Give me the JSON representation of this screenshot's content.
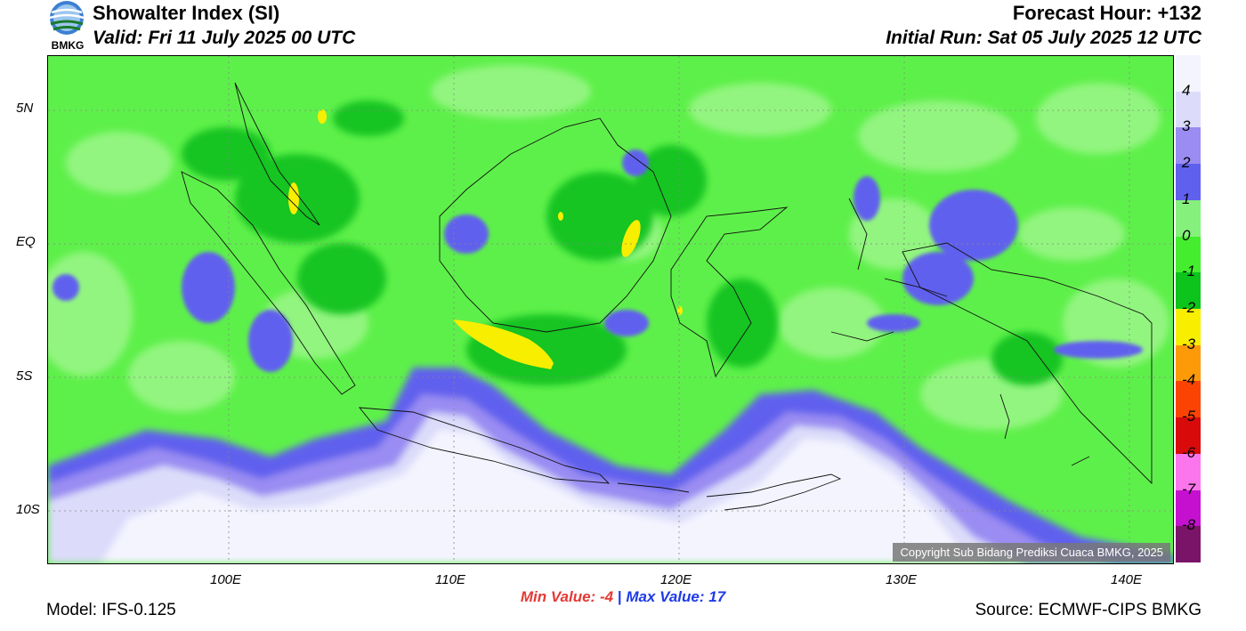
{
  "header": {
    "title": "Showalter Index (SI)",
    "valid": "Valid: Fri 11 July 2025 00 UTC",
    "forecast_hour": "Forecast Hour: +132",
    "initial_run": "Initial Run: Sat 05 July 2025 12 UTC"
  },
  "logo": {
    "text": "BMKG",
    "icon": "bmkg-logo-icon"
  },
  "map": {
    "lat_labels": [
      "5N",
      "EQ",
      "5S",
      "10S"
    ],
    "lon_labels": [
      "100E",
      "110E",
      "120E",
      "130E",
      "140E"
    ],
    "copyright": "Copyright Sub Bidang Prediksi Cuaca BMKG, 2025"
  },
  "colorbar": {
    "labels": [
      "4",
      "3",
      "2",
      "1",
      "0",
      "-1",
      "-2",
      "-3",
      "-4",
      "-5",
      "-6",
      "-7",
      "-8"
    ],
    "colors": [
      "#f4f4ff",
      "#dcdcfa",
      "#9a8cf2",
      "#6060ee",
      "#86f07c",
      "#44ee2e",
      "#0cc41c",
      "#f8ee00",
      "#fd9a08",
      "#fb4404",
      "#d80a0a",
      "#fb76ec",
      "#c610d0",
      "#7a1468"
    ]
  },
  "stats": {
    "min_label": "Min Value:",
    "min_value": "-4",
    "separator": "|",
    "max_label": "Max Value:",
    "max_value": "17"
  },
  "footer": {
    "model": "Model: IFS-0.125",
    "source": "Source: ECMWF-CIPS BMKG"
  }
}
